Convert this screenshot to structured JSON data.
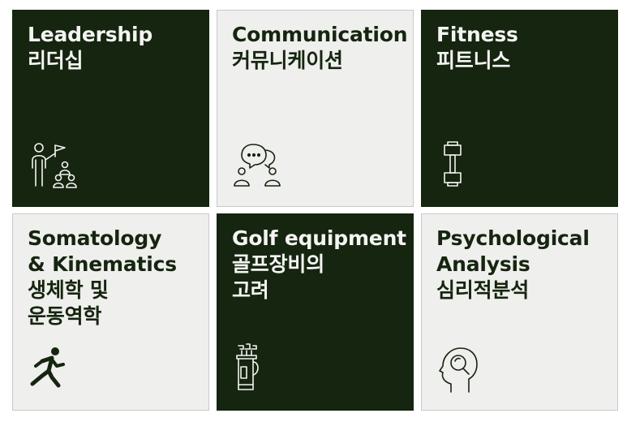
{
  "cards": [
    {
      "title_en": "Leadership",
      "title_ko": "리더십",
      "icon": "leadership-icon",
      "theme": "dark"
    },
    {
      "title_en": "Communication",
      "title_ko": "커뮤니케이션",
      "icon": "chat-people-icon",
      "theme": "light"
    },
    {
      "title_en": "Fitness",
      "title_ko": "피트니스",
      "icon": "dumbbell-icon",
      "theme": "dark"
    },
    {
      "title_en_1": "Somatology",
      "title_en_2": "& Kinematics",
      "title_ko_1": "생체학 및",
      "title_ko_2": "운동역학",
      "icon": "running-person-icon",
      "theme": "light"
    },
    {
      "title_en": "Golf equipment",
      "title_ko_1": "골프장비의",
      "title_ko_2": "고려",
      "icon": "golf-bag-icon",
      "theme": "dark"
    },
    {
      "title_en_1": "Psychological",
      "title_en_2": "Analysis",
      "title_ko": "심리적분석",
      "icon": "head-magnifier-icon",
      "theme": "light"
    }
  ],
  "colors": {
    "dark": "#15250f",
    "light": "#efefed",
    "text_light": "#f4f4f2"
  }
}
